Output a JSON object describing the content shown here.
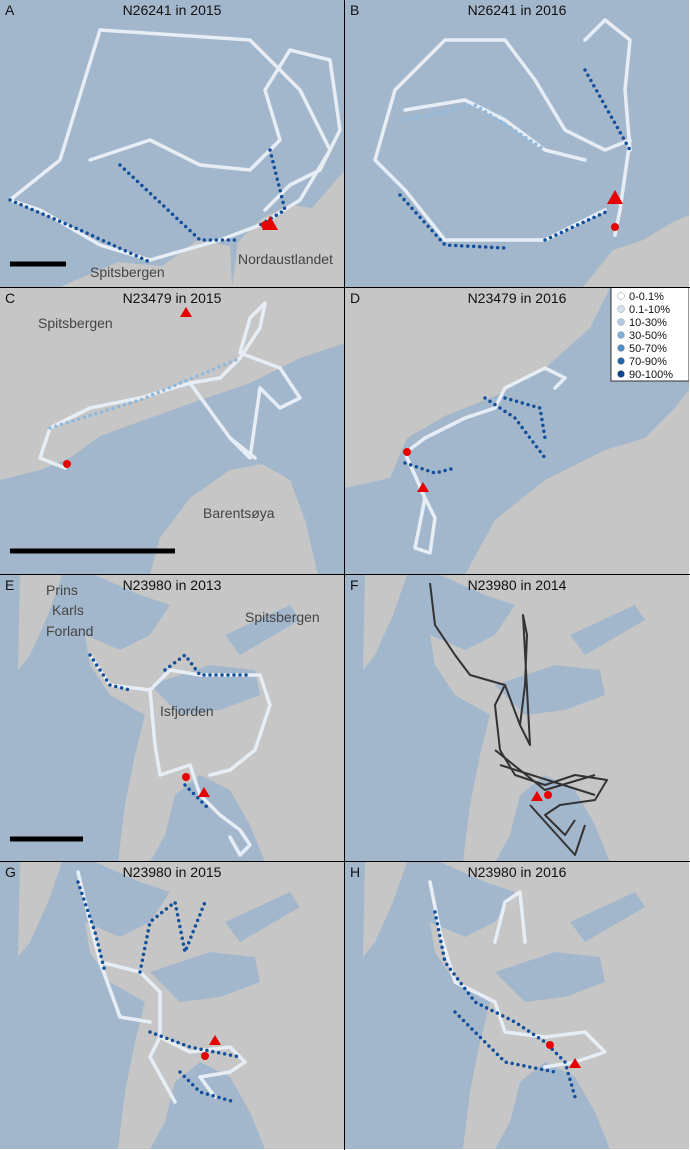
{
  "panels": [
    {
      "letter": "A",
      "title": "N26241 in 2015",
      "places": [
        "Spitsbergen",
        "Nordaustlandet"
      ]
    },
    {
      "letter": "B",
      "title": "N26241 in 2016",
      "places": []
    },
    {
      "letter": "C",
      "title": "N23479 in 2015",
      "places": [
        "Spitsbergen",
        "Barentsøya"
      ]
    },
    {
      "letter": "D",
      "title": "N23479 in 2016",
      "places": []
    },
    {
      "letter": "E",
      "title": "N23980 in 2013",
      "places": [
        "Prins",
        "Karls",
        "Forland",
        "Spitsbergen",
        "Isfjorden"
      ]
    },
    {
      "letter": "F",
      "title": "N23980 in 2014",
      "places": []
    },
    {
      "letter": "G",
      "title": "N23980 in 2015",
      "places": []
    },
    {
      "letter": "H",
      "title": "N23980 in 2016",
      "places": []
    }
  ],
  "legend": [
    {
      "label": "0-0.1%",
      "color": "#ffffff"
    },
    {
      "label": "0.1-10%",
      "color": "#d4e0ee"
    },
    {
      "label": "10-30%",
      "color": "#b0cbe3"
    },
    {
      "label": "30-50%",
      "color": "#80b0d8"
    },
    {
      "label": "50-70%",
      "color": "#4d8ec6"
    },
    {
      "label": "70-90%",
      "color": "#2566ad"
    },
    {
      "label": "90-100%",
      "color": "#0a448c"
    }
  ]
}
